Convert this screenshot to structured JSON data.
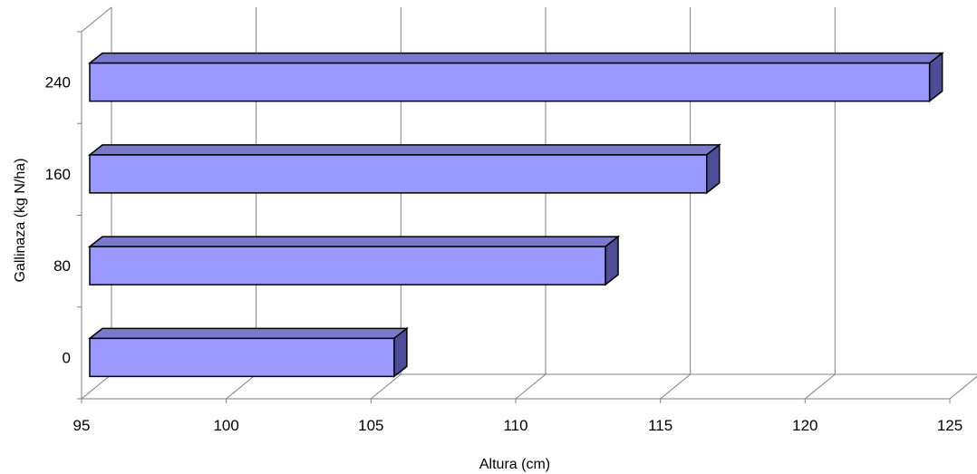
{
  "chart_data": {
    "type": "bar",
    "orientation": "horizontal",
    "style": "3d",
    "title": "",
    "xlabel": "Altura (cm)",
    "ylabel": "Gallinaza (kg N/ha)",
    "categories": [
      "0",
      "80",
      "160",
      "240"
    ],
    "values": [
      105.8,
      113.1,
      116.6,
      124.3
    ],
    "xlim": [
      95,
      125
    ],
    "xticks": [
      "95",
      "100",
      "105",
      "110",
      "115",
      "120",
      "125"
    ],
    "grid": true,
    "legend": "none",
    "colors": {
      "bar_front": "#9999ff",
      "bar_top": "#7a7acc",
      "bar_side": "#4d4d99",
      "bar_edge": "#000000",
      "grid": "#808080",
      "axis": "#808080"
    }
  }
}
